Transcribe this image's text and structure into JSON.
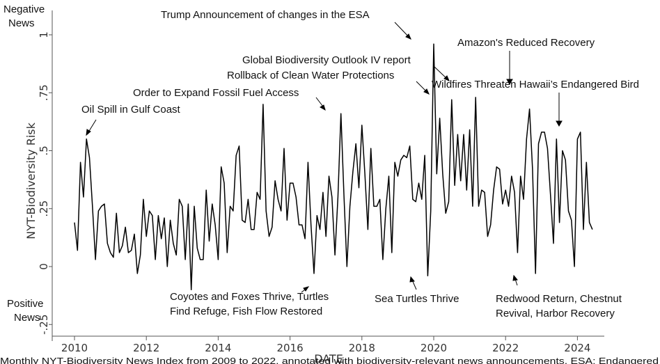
{
  "chart_data": {
    "type": "line",
    "xlabel": "DATE",
    "ylabel": "NYT-Biodiversity Risk",
    "xlim": [
      2009.75,
      2025.05
    ],
    "ylim": [
      -0.25,
      1.0
    ],
    "x_ticks": [
      2010,
      2012,
      2014,
      2016,
      2018,
      2020,
      2022,
      2024
    ],
    "y_ticks": [
      -0.25,
      0,
      0.25,
      0.5,
      0.75,
      1
    ],
    "y_tick_labels": [
      "-.25",
      "0",
      ".25",
      ".5",
      ".75",
      "1"
    ],
    "series_color": "#000000",
    "grid": false,
    "series": [
      {
        "x_start": 2010.0,
        "x_step": 0.08333,
        "values": [
          0.19,
          0.07,
          0.45,
          0.3,
          0.55,
          0.47,
          0.26,
          0.03,
          0.24,
          0.26,
          0.27,
          0.1,
          0.06,
          0.04,
          0.23,
          0.06,
          0.09,
          0.17,
          0.06,
          0.07,
          0.14,
          -0.03,
          0.05,
          0.29,
          0.13,
          0.24,
          0.22,
          0.03,
          0.22,
          0.12,
          0.21,
          0.0,
          0.2,
          0.1,
          0.05,
          0.29,
          0.26,
          0.03,
          0.27,
          -0.1,
          0.26,
          0.08,
          0.03,
          0.03,
          0.33,
          0.11,
          0.27,
          0.18,
          0.03,
          0.43,
          0.36,
          0.06,
          0.26,
          0.24,
          0.48,
          0.52,
          0.2,
          0.19,
          0.29,
          0.16,
          0.16,
          0.32,
          0.29,
          0.7,
          0.24,
          0.13,
          0.17,
          0.37,
          0.29,
          0.24,
          0.51,
          0.2,
          0.36,
          0.36,
          0.3,
          0.18,
          0.18,
          0.12,
          0.45,
          0.18,
          -0.03,
          0.22,
          0.16,
          0.32,
          0.13,
          0.39,
          0.3,
          0.05,
          0.3,
          0.66,
          0.31,
          -0.0,
          0.26,
          0.41,
          0.53,
          0.34,
          0.61,
          0.4,
          0.16,
          0.51,
          0.26,
          0.26,
          0.29,
          0.03,
          0.25,
          0.39,
          0.06,
          0.45,
          0.39,
          0.46,
          0.48,
          0.47,
          0.52,
          0.29,
          0.28,
          0.36,
          0.29,
          0.48,
          -0.04,
          0.24,
          0.96,
          0.4,
          0.64,
          0.4,
          0.23,
          0.28,
          0.72,
          0.35,
          0.57,
          0.37,
          0.57,
          0.33,
          0.59,
          0.26,
          0.73,
          0.26,
          0.33,
          0.32,
          0.13,
          0.18,
          0.33,
          0.43,
          0.42,
          0.27,
          0.33,
          0.26,
          0.39,
          0.32,
          0.06,
          0.39,
          0.29,
          0.55,
          0.68,
          0.42,
          -0.03,
          0.53,
          0.58,
          0.58,
          0.51,
          0.31,
          0.1,
          0.55,
          0.19,
          0.5,
          0.46,
          0.24,
          0.2,
          0.0,
          0.55,
          0.58,
          0.16,
          0.45,
          0.19,
          0.16
        ]
      }
    ],
    "annotations": [
      {
        "text": "Trump Announcement of changes in the ESA",
        "x": 2019.62,
        "y": 0.98
      },
      {
        "text": "Amazon's Reduced Recovery",
        "x": 2022.2,
        "y": 0.69
      },
      {
        "text": "Global Biodiversity Outlook IV report",
        "x": 2020.0,
        "y": 0.82
      },
      {
        "text": "Rollback of Clean Water Protections",
        "x": 2020.0,
        "y": 0.73
      },
      {
        "text": "Wildfires Threaten Hawaii’s Endangered Bird",
        "x": 2023.58,
        "y": 0.59
      },
      {
        "text": "Order to Expand Fossil Fuel Access",
        "x": 2017.17,
        "y": 0.67
      },
      {
        "text": "Oil Spill in Gulf Coast",
        "x": 2010.33,
        "y": 0.56
      },
      {
        "text": "Coyotes and Foxes Thrive, Turtles",
        "x": 2016.4,
        "y": -0.045
      },
      {
        "text": "Find Refuge, Fish Flow Restored",
        "x": null,
        "y": null
      },
      {
        "text": "Sea Turtles Thrive",
        "x": 2019.5,
        "y": -0.06
      },
      {
        "text": "Redwood Return, Chestnut",
        "x": 2022.35,
        "y": -0.05
      },
      {
        "text": "Revival, Harbor Recovery",
        "x": null,
        "y": null
      }
    ]
  },
  "labels": {
    "negative_line1": "Negative",
    "negative_line2": "News",
    "positive_line1": "Positive",
    "positive_line2": "News",
    "caption": "Monthly NYT-Biodiversity News Index from 2009 to 2022, annotated with biodiversity-relevant news announcements. ESA: Endangered"
  }
}
